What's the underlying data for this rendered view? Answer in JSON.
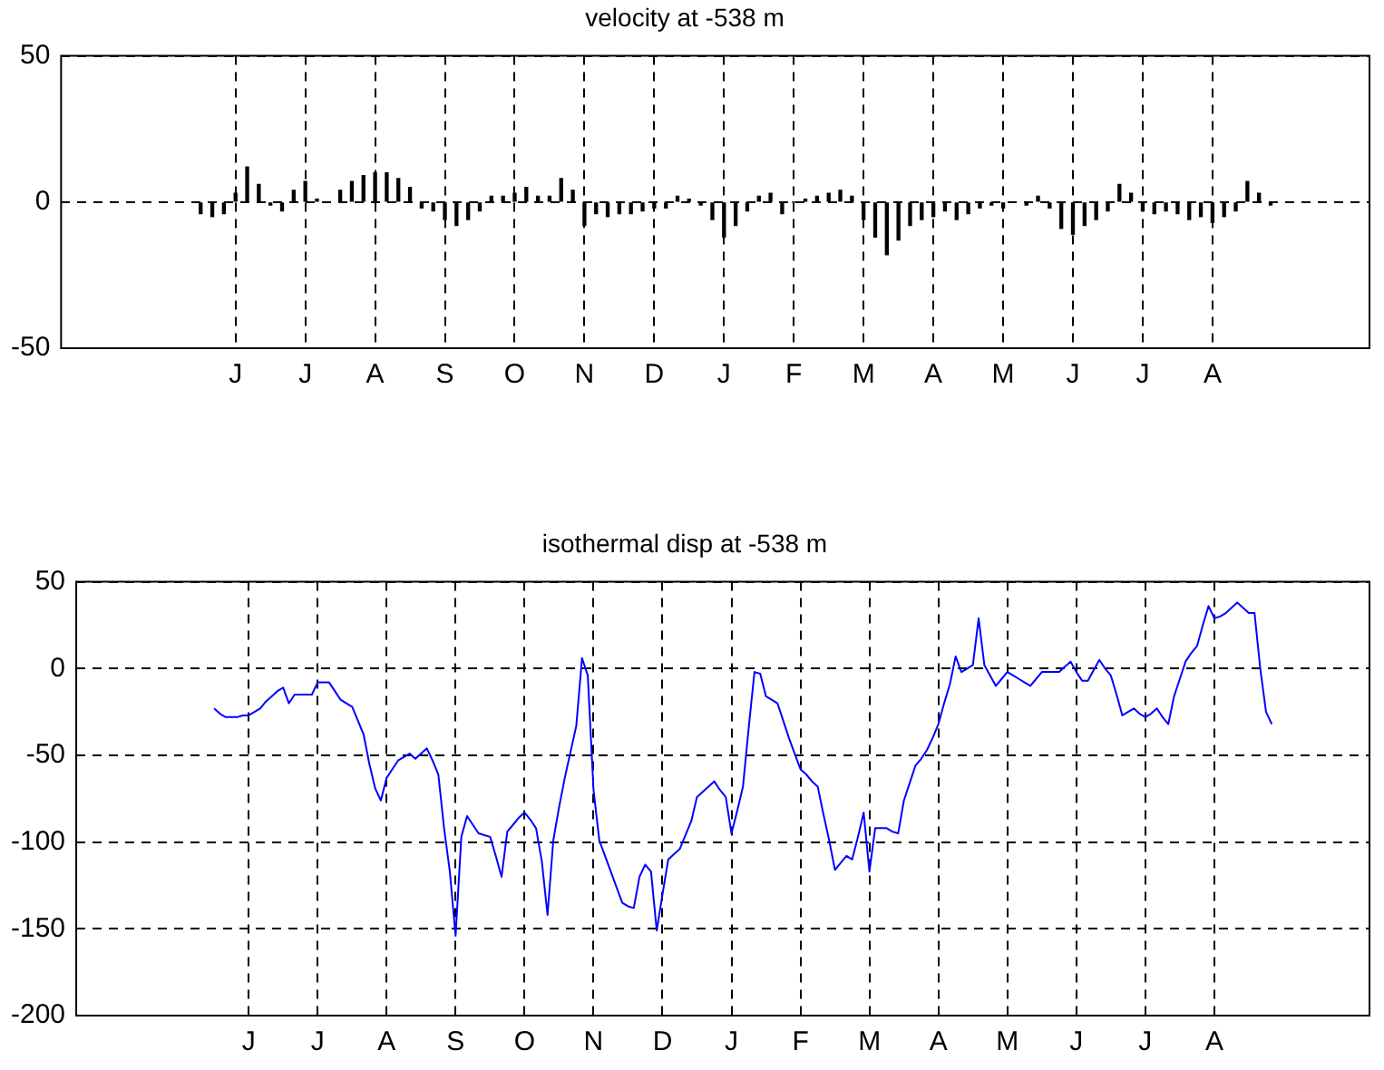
{
  "chart_data": [
    {
      "type": "bar",
      "title": "velocity at -538 m",
      "color": "#000000",
      "categories": [
        null,
        null,
        null,
        null,
        null,
        null,
        null,
        null,
        null,
        null,
        null,
        null,
        null,
        null,
        null,
        null,
        null,
        null,
        null,
        null,
        null,
        null,
        null,
        null,
        null,
        null,
        null,
        null,
        null,
        null,
        "J",
        null,
        null,
        null,
        null,
        null,
        null,
        null,
        null,
        null,
        null,
        null,
        "J",
        null,
        null,
        null,
        null,
        null,
        null,
        null,
        null,
        null,
        null,
        null,
        "A",
        null,
        null,
        null,
        null,
        null,
        null,
        null,
        null,
        null,
        null,
        null,
        "S",
        null,
        null,
        null,
        null,
        null,
        null,
        null,
        null,
        null,
        null,
        null,
        "O",
        null,
        null,
        null,
        null,
        null,
        null,
        null,
        null,
        null,
        null,
        null,
        "N",
        null,
        null,
        null,
        null,
        null,
        null,
        null,
        null,
        null,
        null,
        null,
        "D",
        null,
        null,
        null,
        null,
        null,
        null,
        null,
        null,
        null,
        null,
        null,
        "J",
        null,
        null,
        null,
        null,
        null,
        null,
        null,
        null,
        null,
        null,
        null,
        "F",
        null,
        null,
        null,
        null,
        null,
        null,
        null,
        null,
        null,
        null,
        null,
        "M",
        null,
        null,
        null,
        null,
        null,
        null,
        null,
        null,
        null,
        null,
        null,
        "A",
        null,
        null,
        null,
        null,
        null,
        null,
        null,
        null,
        null,
        null,
        null,
        "M",
        null,
        null,
        null,
        null,
        null,
        null,
        null,
        null,
        null,
        null,
        null,
        "J",
        null,
        null,
        null,
        null,
        null,
        null,
        null,
        null,
        null,
        null,
        null,
        "J",
        null,
        null,
        null,
        null,
        null,
        null,
        null,
        null,
        null,
        null,
        null,
        "A",
        null,
        null,
        null,
        null,
        null,
        null,
        null,
        null,
        null,
        null,
        null,
        null,
        null,
        null,
        null,
        null,
        null,
        null,
        null,
        null,
        null,
        null,
        null,
        null,
        null,
        null,
        null
      ],
      "values": [
        null,
        null,
        null,
        null,
        null,
        null,
        null,
        null,
        null,
        null,
        null,
        null,
        null,
        null,
        null,
        null,
        null,
        null,
        null,
        null,
        null,
        null,
        null,
        null,
        -4,
        null,
        -5,
        null,
        -4,
        null,
        3,
        null,
        12,
        null,
        6,
        null,
        -1,
        null,
        -3,
        null,
        4,
        null,
        7,
        null,
        1,
        null,
        0,
        null,
        4,
        null,
        7,
        null,
        9,
        null,
        10,
        null,
        10,
        null,
        8,
        null,
        5,
        null,
        -2,
        null,
        -3,
        null,
        -6,
        null,
        -8,
        null,
        -6,
        null,
        -3,
        null,
        2,
        null,
        2,
        null,
        3,
        null,
        5,
        null,
        2,
        null,
        2,
        null,
        8,
        null,
        4,
        null,
        -8,
        null,
        -4,
        null,
        -5,
        null,
        -4,
        null,
        -4,
        null,
        -3,
        null,
        -2,
        null,
        -2,
        null,
        2,
        null,
        1,
        null,
        -1,
        null,
        -6,
        null,
        -12,
        null,
        -8,
        null,
        -3,
        null,
        2,
        null,
        3,
        null,
        -4,
        null,
        0,
        null,
        1,
        null,
        2,
        null,
        3,
        null,
        4,
        null,
        2,
        null,
        -6,
        null,
        -12,
        null,
        -18,
        null,
        -13,
        null,
        -8,
        null,
        -6,
        null,
        -5,
        null,
        -3,
        null,
        -6,
        null,
        -4,
        null,
        -2,
        null,
        -1,
        null,
        -2,
        null,
        0,
        null,
        -1,
        null,
        2,
        null,
        -2,
        null,
        -9,
        null,
        -11,
        null,
        -8,
        null,
        -6,
        null,
        -3,
        null,
        6,
        null,
        3,
        null,
        -3,
        null,
        -4,
        null,
        -3,
        null,
        -4,
        null,
        -6,
        null,
        -5,
        null,
        -7,
        null,
        -5,
        null,
        -3,
        null,
        7,
        null,
        3,
        null,
        -1,
        null,
        null,
        null,
        null,
        null,
        null,
        null,
        null,
        null,
        null,
        null,
        null,
        null,
        null,
        null,
        null,
        null
      ],
      "ylim": [
        -50,
        50
      ],
      "yticks": [
        -50,
        0,
        50
      ],
      "grid": true
    },
    {
      "type": "line",
      "title": "isothermal disp at -538 m",
      "color": "#0000ff",
      "categories": [
        null,
        null,
        null,
        null,
        null,
        null,
        null,
        null,
        null,
        null,
        null,
        null,
        null,
        null,
        null,
        null,
        null,
        null,
        null,
        null,
        null,
        null,
        null,
        null,
        null,
        null,
        null,
        null,
        null,
        null,
        "J",
        null,
        null,
        null,
        null,
        null,
        null,
        null,
        null,
        null,
        null,
        null,
        "J",
        null,
        null,
        null,
        null,
        null,
        null,
        null,
        null,
        null,
        null,
        null,
        "A",
        null,
        null,
        null,
        null,
        null,
        null,
        null,
        null,
        null,
        null,
        null,
        "S",
        null,
        null,
        null,
        null,
        null,
        null,
        null,
        null,
        null,
        null,
        null,
        "O",
        null,
        null,
        null,
        null,
        null,
        null,
        null,
        null,
        null,
        null,
        null,
        "N",
        null,
        null,
        null,
        null,
        null,
        null,
        null,
        null,
        null,
        null,
        null,
        "D",
        null,
        null,
        null,
        null,
        null,
        null,
        null,
        null,
        null,
        null,
        null,
        "J",
        null,
        null,
        null,
        null,
        null,
        null,
        null,
        null,
        null,
        null,
        null,
        "F",
        null,
        null,
        null,
        null,
        null,
        null,
        null,
        null,
        null,
        null,
        null,
        "M",
        null,
        null,
        null,
        null,
        null,
        null,
        null,
        null,
        null,
        null,
        null,
        "A",
        null,
        null,
        null,
        null,
        null,
        null,
        null,
        null,
        null,
        null,
        null,
        "M",
        null,
        null,
        null,
        null,
        null,
        null,
        null,
        null,
        null,
        null,
        null,
        "J",
        null,
        null,
        null,
        null,
        null,
        null,
        null,
        null,
        null,
        null,
        null,
        "J",
        null,
        null,
        null,
        null,
        null,
        null,
        null,
        null,
        null,
        null,
        null,
        "A",
        null,
        null,
        null,
        null,
        null,
        null,
        null,
        null,
        null,
        null,
        null,
        null,
        null,
        null,
        null,
        null,
        null,
        null,
        null,
        null,
        null,
        null,
        null,
        null,
        null,
        null,
        null
      ],
      "values": [
        null,
        null,
        null,
        null,
        null,
        null,
        null,
        null,
        null,
        null,
        null,
        null,
        null,
        null,
        null,
        null,
        null,
        null,
        null,
        null,
        null,
        null,
        null,
        null,
        -23,
        -26,
        -28,
        -28,
        -28,
        -27,
        -27,
        -25,
        -23,
        -19,
        -16,
        -13,
        -11,
        -20,
        -15,
        -15,
        -15,
        -15,
        -8,
        -8,
        -8,
        -13,
        -18,
        -20,
        -22,
        -30,
        -38,
        -55,
        -69,
        -76,
        -63,
        -58,
        -53,
        -51,
        -49,
        -52,
        -49,
        -46,
        -53,
        -61,
        -92,
        -117,
        -154,
        -97,
        -85,
        -90,
        -95,
        -96,
        -97,
        -108,
        -120,
        -94,
        -90,
        -86,
        -83,
        -87,
        -92,
        -111,
        -142,
        -99,
        -80,
        -63,
        -48,
        -33,
        6,
        -4,
        -70,
        -99,
        -108,
        -117,
        -126,
        -135,
        -137,
        -138,
        -120,
        -113,
        -117,
        -151,
        -130,
        -110,
        -107,
        -104,
        -96,
        -88,
        -74,
        -71,
        -68,
        -65,
        -70,
        -74,
        -95,
        -82,
        -68,
        -34,
        -2,
        -3,
        -16,
        -18,
        -20,
        -30,
        -40,
        -49,
        -58,
        -61,
        -65,
        -68,
        -84,
        -99,
        -116,
        -112,
        -108,
        -110,
        -97,
        -83,
        -117,
        -92,
        -92,
        -92,
        -94,
        -95,
        -76,
        -66,
        -56,
        -52,
        -47,
        -40,
        -32,
        -20,
        -9,
        7,
        -2,
        0,
        2,
        29,
        2,
        -4,
        -10,
        -6,
        -2,
        -4,
        -6,
        -8,
        -10,
        -6,
        -2,
        -2,
        -2,
        -2,
        1,
        4,
        -2,
        -7,
        -7,
        -1,
        5,
        0,
        -4,
        -15,
        -27,
        -25,
        -23,
        -26,
        -28,
        -26,
        -23,
        -28,
        -32,
        -16,
        -6,
        4,
        9,
        13,
        25,
        36,
        29,
        30,
        32,
        35,
        38,
        35,
        32,
        32,
        0,
        -25,
        -32,
        null,
        null,
        null,
        null,
        null,
        null,
        null,
        null,
        null,
        null,
        null,
        null,
        null,
        null,
        null,
        null,
        null
      ],
      "ylim": [
        -200,
        50
      ],
      "yticks": [
        -200,
        -150,
        -100,
        -50,
        0,
        50
      ],
      "grid": true
    }
  ]
}
